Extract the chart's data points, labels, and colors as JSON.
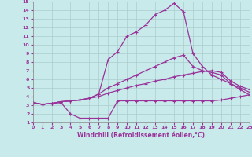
{
  "bg_color": "#c8eaea",
  "grid_color": "#aacccc",
  "line_color": "#993399",
  "xlabel": "Windchill (Refroidissement éolien,°C)",
  "xlim": [
    0,
    23
  ],
  "ylim": [
    1,
    15
  ],
  "xticks": [
    0,
    1,
    2,
    3,
    4,
    5,
    6,
    7,
    8,
    9,
    10,
    11,
    12,
    13,
    14,
    15,
    16,
    17,
    18,
    19,
    20,
    21,
    22,
    23
  ],
  "yticks": [
    1,
    2,
    3,
    4,
    5,
    6,
    7,
    8,
    9,
    10,
    11,
    12,
    13,
    14,
    15
  ],
  "line1_x": [
    0,
    1,
    2,
    3,
    4,
    5,
    6,
    7,
    8,
    9,
    10,
    11,
    12,
    13,
    14,
    15,
    16,
    17,
    18,
    19,
    20,
    21,
    22,
    23
  ],
  "line1_y": [
    3.3,
    3.1,
    3.2,
    3.4,
    3.5,
    3.6,
    3.8,
    4.3,
    8.3,
    9.2,
    11.0,
    11.5,
    12.3,
    13.5,
    14.0,
    14.8,
    13.8,
    9.0,
    7.5,
    6.5,
    6.0,
    5.5,
    4.8,
    4.2
  ],
  "line2_x": [
    0,
    1,
    2,
    3,
    4,
    5,
    6,
    7,
    8,
    9,
    10,
    11,
    12,
    13,
    14,
    15,
    16,
    17,
    18,
    19,
    20,
    21,
    22,
    23
  ],
  "line2_y": [
    3.3,
    3.1,
    3.2,
    3.4,
    3.5,
    3.6,
    3.8,
    4.3,
    5.0,
    5.5,
    6.0,
    6.5,
    7.0,
    7.5,
    8.0,
    8.5,
    8.8,
    7.5,
    7.0,
    6.8,
    6.5,
    5.5,
    5.0,
    4.5
  ],
  "line3_x": [
    0,
    1,
    2,
    3,
    4,
    5,
    6,
    7,
    8,
    9,
    10,
    11,
    12,
    13,
    14,
    15,
    16,
    17,
    18,
    19,
    20,
    21,
    22,
    23
  ],
  "line3_y": [
    3.3,
    3.1,
    3.2,
    3.4,
    3.5,
    3.6,
    3.8,
    4.0,
    4.4,
    4.7,
    5.0,
    5.3,
    5.5,
    5.8,
    6.0,
    6.3,
    6.5,
    6.7,
    6.9,
    7.0,
    6.8,
    5.8,
    5.2,
    4.8
  ],
  "line4_x": [
    0,
    1,
    2,
    3,
    4,
    5,
    6,
    7,
    8,
    9,
    10,
    11,
    12,
    13,
    14,
    15,
    16,
    17,
    18,
    19,
    20,
    21,
    22,
    23
  ],
  "line4_y": [
    3.3,
    3.1,
    3.2,
    3.3,
    2.0,
    1.5,
    1.5,
    1.5,
    1.5,
    3.5,
    3.5,
    3.5,
    3.5,
    3.5,
    3.5,
    3.5,
    3.5,
    3.5,
    3.5,
    3.5,
    3.6,
    3.8,
    4.0,
    4.2
  ]
}
